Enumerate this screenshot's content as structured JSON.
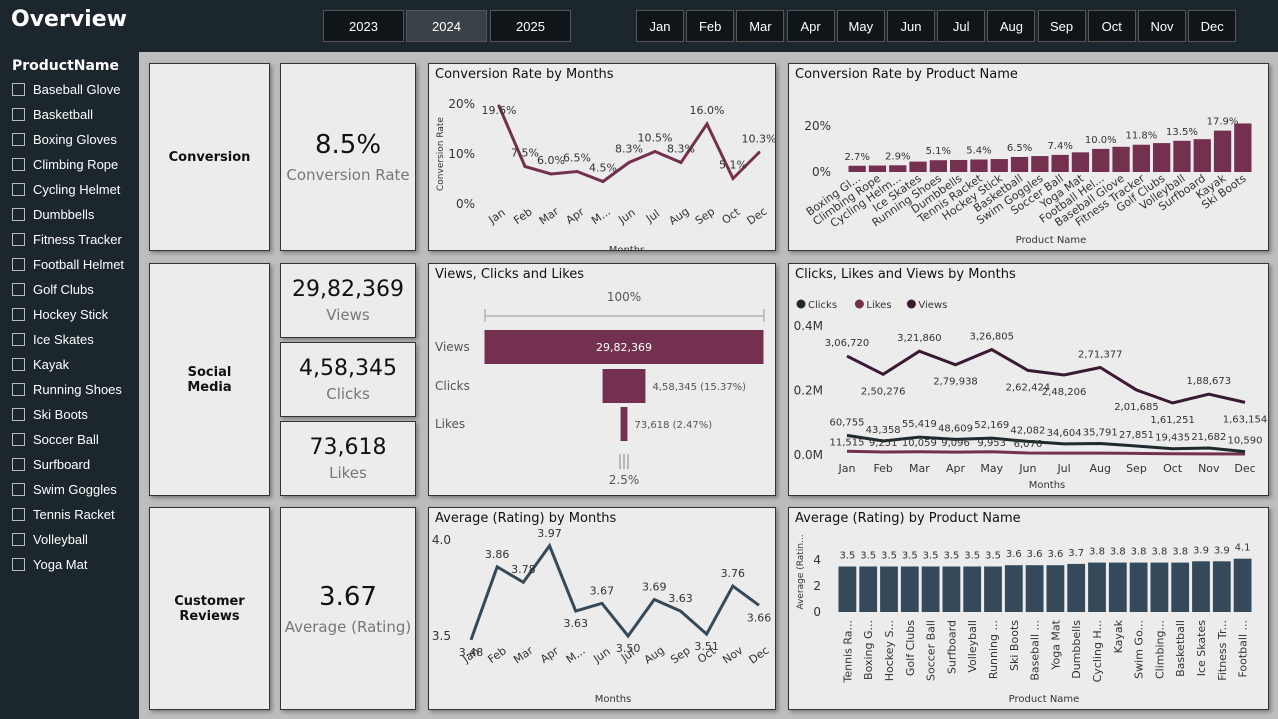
{
  "header": {
    "title": "Overview"
  },
  "years": [
    "2023",
    "2024",
    "2025"
  ],
  "selected_year": "2024",
  "months": [
    "Jan",
    "Feb",
    "Mar",
    "Apr",
    "May",
    "Jun",
    "Jul",
    "Aug",
    "Sep",
    "Oct",
    "Nov",
    "Dec"
  ],
  "filter": {
    "title": "ProductName",
    "items": [
      "Baseball Glove",
      "Basketball",
      "Boxing Gloves",
      "Climbing Rope",
      "Cycling Helmet",
      "Dumbbells",
      "Fitness Tracker",
      "Football Helmet",
      "Golf Clubs",
      "Hockey Stick",
      "Ice Skates",
      "Kayak",
      "Running Shoes",
      "Ski Boots",
      "Soccer Ball",
      "Surfboard",
      "Swim Goggles",
      "Tennis Racket",
      "Volleyball",
      "Yoga Mat"
    ]
  },
  "sections": {
    "conversion": "Conversion",
    "social_line1": "Social",
    "social_line2": "Media",
    "reviews_line1": "Customer",
    "reviews_line2": "Reviews"
  },
  "kpis": {
    "conversion": {
      "value": "8.5%",
      "label": "Conversion Rate"
    },
    "views": {
      "value": "29,82,369",
      "label": "Views"
    },
    "clicks": {
      "value": "4,58,345",
      "label": "Clicks"
    },
    "likes": {
      "value": "73,618",
      "label": "Likes"
    },
    "rating": {
      "value": "3.67",
      "label": "Average (Rating)"
    }
  },
  "chart_data": [
    {
      "id": "conv_month",
      "type": "line",
      "title": "Conversion Rate by Months",
      "xlabel": "Months",
      "ylabel": "Conversion Rate",
      "ylim": [
        0,
        20
      ],
      "y_ticks": [
        "0%",
        "10%",
        "20%"
      ],
      "categories": [
        "Jan",
        "Feb",
        "Mar",
        "Apr",
        "M...",
        "Jun",
        "Jul",
        "Aug",
        "Sep",
        "Oct",
        "Dec"
      ],
      "values": [
        19.6,
        7.5,
        6.0,
        6.5,
        4.5,
        8.3,
        10.5,
        8.3,
        16.0,
        5.1,
        10.3
      ],
      "labels": [
        "19.6%",
        "7.5%",
        "6.0%",
        "6.5%",
        "4.5%",
        "8.3%",
        "10.5%",
        "8.3%",
        "16.0%",
        "5.1%",
        "10.3%"
      ],
      "color": "#74304f"
    },
    {
      "id": "conv_product",
      "type": "bar",
      "title": "Conversion Rate by Product Name",
      "xlabel": "Product Name",
      "ylim": [
        0,
        20
      ],
      "y_ticks": [
        "0%",
        "20%"
      ],
      "categories": [
        "Boxing Gl...",
        "Climbing Rope",
        "Cycling Helm...",
        "Ice Skates",
        "Running Shoes",
        "Dumbbells",
        "Tennis Racket",
        "Hockey Stick",
        "Basketball",
        "Swim Goggles",
        "Soccer Ball",
        "Yoga Mat",
        "Football Hel...",
        "Baseball Glove",
        "Fitness Tracker",
        "Golf Clubs",
        "Volleyball",
        "Surfboard",
        "Kayak",
        "Ski Boots"
      ],
      "values": [
        2.7,
        2.8,
        2.9,
        4.5,
        5.1,
        5.2,
        5.4,
        5.6,
        6.5,
        6.9,
        7.4,
        8.5,
        10.0,
        10.9,
        11.8,
        12.5,
        13.5,
        14.2,
        17.9,
        21.0
      ],
      "labels": [
        "2.7%",
        "",
        "2.9%",
        "",
        "5.1%",
        "",
        "5.4%",
        "",
        "6.5%",
        "",
        "7.4%",
        "",
        "10.0%",
        "",
        "11.8%",
        "",
        "13.5%",
        "",
        "17.9%",
        ""
      ],
      "color": "#74304f"
    },
    {
      "id": "funnel",
      "type": "bar",
      "title": "Views, Clicks and Likes",
      "top_label": "100%",
      "bottom_label": "2.5%",
      "categories": [
        "Views",
        "Clicks",
        "Likes"
      ],
      "values": [
        2982369,
        458345,
        73618
      ],
      "labels": [
        "29,82,369",
        "4,58,345 (15.37%)",
        "73,618 (2.47%)"
      ],
      "color": "#74304f"
    },
    {
      "id": "social_month",
      "type": "line",
      "title": "Clicks, Likes and Views by Months",
      "xlabel": "Months",
      "ylim": [
        0,
        400000
      ],
      "y_ticks": [
        "0.0M",
        "0.2M",
        "0.4M"
      ],
      "legend": [
        "Clicks",
        "Likes",
        "Views"
      ],
      "categories": [
        "Jan",
        "Feb",
        "Mar",
        "Apr",
        "May",
        "Jun",
        "Jul",
        "Aug",
        "Sep",
        "Oct",
        "Nov",
        "Dec"
      ],
      "series": [
        {
          "name": "Views",
          "color": "#3a1a33",
          "values": [
            306720,
            250276,
            321860,
            279938,
            326805,
            262424,
            248206,
            271377,
            201685,
            161251,
            188673,
            163154
          ],
          "labels": [
            "3,06,720",
            "2,50,276",
            "3,21,860",
            "2,79,938",
            "3,26,805",
            "2,62,424",
            "2,48,206",
            "2,71,377",
            "2,01,685",
            "1,61,251",
            "1,88,673",
            "1,63,154"
          ]
        },
        {
          "name": "Clicks",
          "color": "#1f2a2e",
          "values": [
            60755,
            43358,
            55419,
            48609,
            52169,
            42082,
            34604,
            35791,
            27851,
            19435,
            21682,
            10590
          ],
          "labels": [
            "60,755",
            "43,358",
            "55,419",
            "48,609",
            "52,169",
            "42,082",
            "34,604",
            "35,791",
            "27,851",
            "19,435",
            "21,682",
            "10,590"
          ]
        },
        {
          "name": "Likes",
          "color": "#74304f",
          "values": [
            11515,
            9251,
            10059,
            9096,
            9953,
            6076,
            5900,
            5800,
            4900,
            3800,
            3500,
            3200
          ],
          "labels": [
            "11,515",
            "9,251",
            "10,059",
            "9,096",
            "9,953",
            "6,076",
            "",
            "",
            "",
            "",
            "",
            ""
          ]
        }
      ]
    },
    {
      "id": "rating_month",
      "type": "line",
      "title": "Average (Rating) by Months",
      "xlabel": "Months",
      "ylim": [
        3.5,
        4.0
      ],
      "y_ticks": [
        "3.5",
        "4.0"
      ],
      "categories": [
        "Jan",
        "Feb",
        "Mar",
        "Apr",
        "M...",
        "Jun",
        "Jul",
        "Aug",
        "Sep",
        "Oct",
        "Nov",
        "Dec"
      ],
      "values": [
        3.48,
        3.86,
        3.78,
        3.97,
        3.63,
        3.67,
        3.5,
        3.69,
        3.63,
        3.51,
        3.76,
        3.66
      ],
      "labels": [
        "3.48",
        "3.86",
        "3.78",
        "3.97",
        "3.63",
        "3.67",
        "3.50",
        "3.69",
        "3.63",
        "3.51",
        "3.76",
        "3.66"
      ],
      "color": "#34495a"
    },
    {
      "id": "rating_product",
      "type": "bar",
      "title": "Average (Rating) by Product Name",
      "xlabel": "Product Name",
      "ylabel": "Average (Ratin...",
      "ylim": [
        0,
        4
      ],
      "y_ticks": [
        "0",
        "2",
        "4"
      ],
      "categories": [
        "Tennis Ra...",
        "Boxing G...",
        "Hockey S...",
        "Golf Clubs",
        "Soccer Ball",
        "Surfboard",
        "Volleyball",
        "Running ...",
        "Ski Boots",
        "Baseball ...",
        "Yoga Mat",
        "Dumbbells",
        "Cycling H...",
        "Kayak",
        "Swim Go...",
        "Climbing...",
        "Basketball",
        "Ice Skates",
        "Fitness Tr...",
        "Football ..."
      ],
      "values": [
        3.5,
        3.5,
        3.5,
        3.5,
        3.5,
        3.5,
        3.5,
        3.5,
        3.6,
        3.6,
        3.6,
        3.7,
        3.8,
        3.8,
        3.8,
        3.8,
        3.8,
        3.9,
        3.9,
        4.1
      ],
      "labels": [
        "3.5",
        "3.5",
        "3.5",
        "3.5",
        "3.5",
        "3.5",
        "3.5",
        "3.5",
        "3.6",
        "3.6",
        "3.6",
        "3.7",
        "3.8",
        "3.8",
        "3.8",
        "3.8",
        "3.8",
        "3.9",
        "3.9",
        "4.1"
      ],
      "color": "#34495a"
    }
  ]
}
